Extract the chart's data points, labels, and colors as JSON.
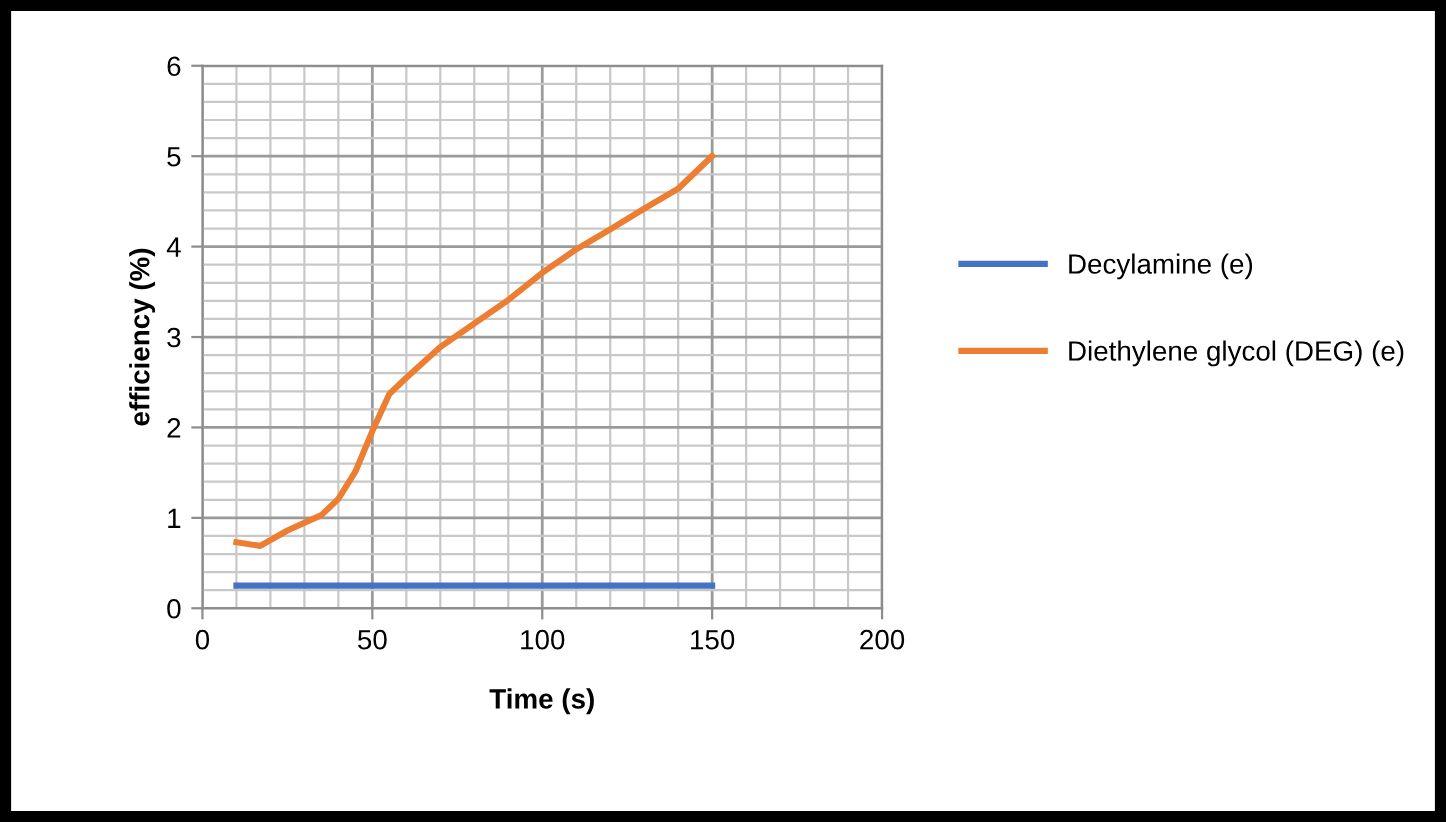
{
  "chart_data": {
    "type": "line",
    "xlabel": "Time (s)",
    "ylabel": "efficiency (%)",
    "xlim": [
      0,
      200
    ],
    "xticks": [
      0,
      50,
      100,
      150,
      200
    ],
    "ylim": [
      0,
      6
    ],
    "yticks": [
      0,
      1,
      2,
      3,
      4,
      5,
      6
    ],
    "grid": true,
    "legend": "right",
    "marker": "none",
    "line_style": "solid",
    "series": [
      {
        "name": "Decylamine (e)",
        "color": "#4472c4",
        "x": [
          10,
          150
        ],
        "values": [
          0.25,
          0.25
        ]
      },
      {
        "name": "Diethylene glycol (DEG) (e)",
        "color": "#ed7d31",
        "x": [
          10,
          17,
          25,
          35,
          40,
          45,
          50,
          55,
          60,
          70,
          80,
          90,
          100,
          110,
          120,
          130,
          140,
          150
        ],
        "values": [
          0.73,
          0.69,
          0.86,
          1.03,
          1.21,
          1.51,
          1.96,
          2.37,
          2.55,
          2.89,
          3.15,
          3.41,
          3.71,
          3.97,
          4.19,
          4.42,
          4.64,
          5.0
        ]
      }
    ]
  }
}
